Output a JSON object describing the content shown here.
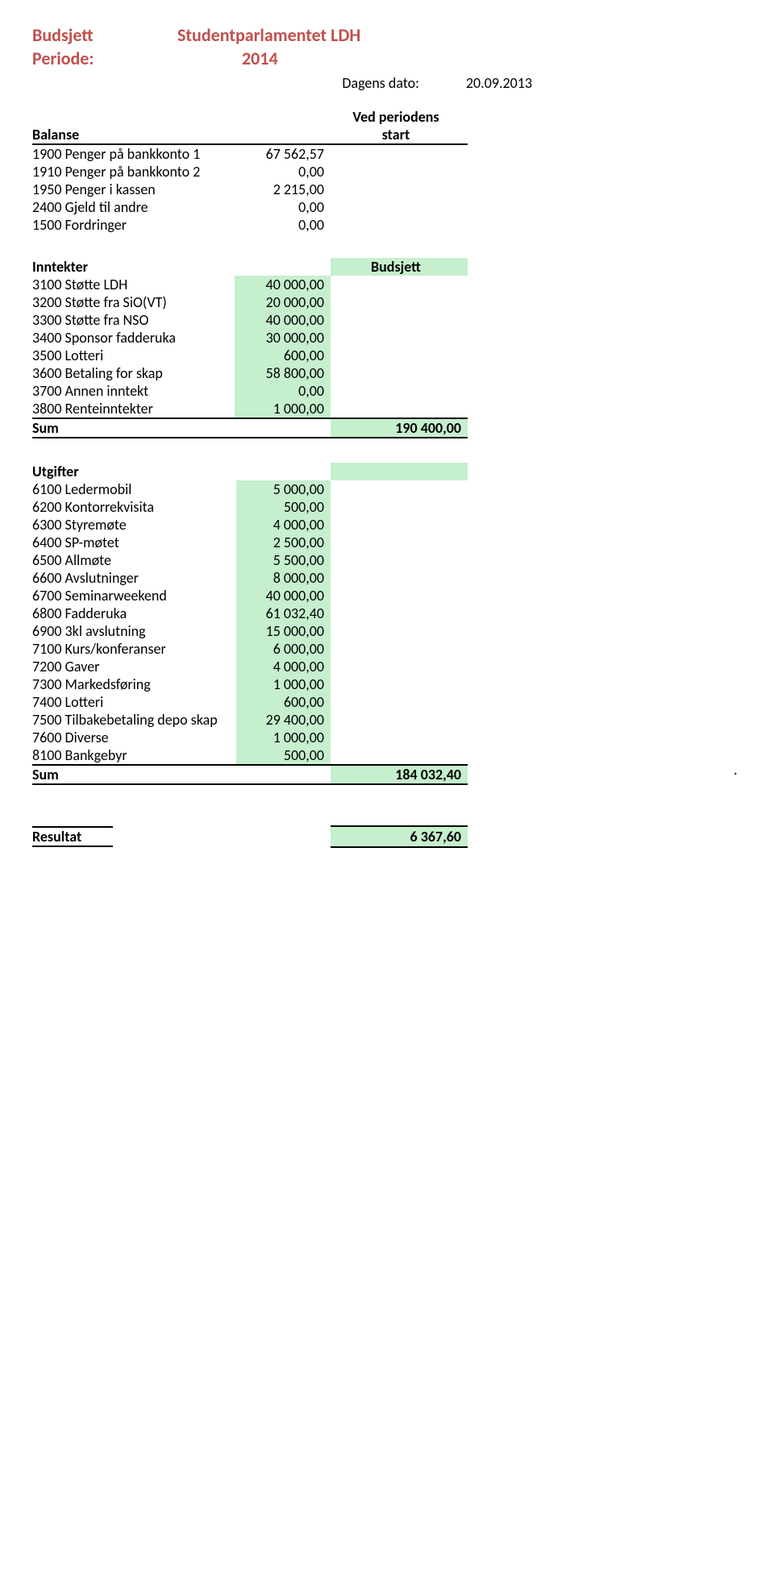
{
  "header": {
    "budget_label": "Budsjett",
    "budget_value": "Studentparlamentet LDH",
    "period_label": "Periode:",
    "period_value": "2014",
    "date_label": "Dagens dato:",
    "date_value": "20.09.2013"
  },
  "balanse": {
    "title": "Balanse",
    "col_head_pre": "Ved periodens",
    "col_head": "start",
    "rows": [
      {
        "label": "1900 Penger på bankkonto 1",
        "value": "67 562,57"
      },
      {
        "label": "1910 Penger på bankkonto 2",
        "value": "0,00"
      },
      {
        "label": "1950 Penger i kassen",
        "value": "2 215,00"
      },
      {
        "label": "2400 Gjeld til andre",
        "value": "0,00"
      },
      {
        "label": "1500 Fordringer",
        "value": "0,00"
      }
    ]
  },
  "inntekter": {
    "title": "Inntekter",
    "col_head": "Budsjett",
    "rows": [
      {
        "label": "3100 Støtte LDH",
        "value": "40 000,00"
      },
      {
        "label": "3200 Støtte fra SiO(VT)",
        "value": "20 000,00"
      },
      {
        "label": "3300 Støtte fra NSO",
        "value": "40 000,00"
      },
      {
        "label": "3400 Sponsor fadderuka",
        "value": "30 000,00"
      },
      {
        "label": "3500 Lotteri",
        "value": "600,00"
      },
      {
        "label": "3600 Betaling for skap",
        "value": "58 800,00"
      },
      {
        "label": "3700 Annen inntekt",
        "value": "0,00"
      },
      {
        "label": "3800 Renteinntekter",
        "value": "1 000,00"
      }
    ],
    "sum_label": "Sum",
    "sum_value": "190 400,00"
  },
  "utgifter": {
    "title": "Utgifter",
    "rows": [
      {
        "label": "6100 Ledermobil",
        "value": "5 000,00"
      },
      {
        "label": "6200 Kontorrekvisita",
        "value": "500,00"
      },
      {
        "label": "6300 Styremøte",
        "value": "4 000,00"
      },
      {
        "label": "6400 SP-møtet",
        "value": "2 500,00"
      },
      {
        "label": "6500 Allmøte",
        "value": "5 500,00"
      },
      {
        "label": "6600 Avslutninger",
        "value": "8 000,00"
      },
      {
        "label": "6700 Seminarweekend",
        "value": "40 000,00"
      },
      {
        "label": "6800 Fadderuka",
        "value": "61 032,40"
      },
      {
        "label": "6900 3kl avslutning",
        "value": "15 000,00"
      },
      {
        "label": "7100 Kurs/konferanser",
        "value": "6 000,00"
      },
      {
        "label": "7200 Gaver",
        "value": "4 000,00"
      },
      {
        "label": "7300 Markedsføring",
        "value": "1 000,00"
      },
      {
        "label": "7400 Lotteri",
        "value": "600,00"
      },
      {
        "label": "7500 Tilbakebetaling depo skap",
        "value": "29 400,00"
      },
      {
        "label": "7600 Diverse",
        "value": "1 000,00"
      },
      {
        "label": "8100 Bankgebyr",
        "value": "500,00"
      }
    ],
    "sum_label": "Sum",
    "sum_value": "184 032,40"
  },
  "resultat": {
    "label": "Resultat",
    "value": "6 367,60"
  },
  "colors": {
    "header_text": "#c0504d",
    "highlight_bg": "#c6efce",
    "text": "#000000",
    "border": "#000000",
    "background": "#ffffff"
  }
}
